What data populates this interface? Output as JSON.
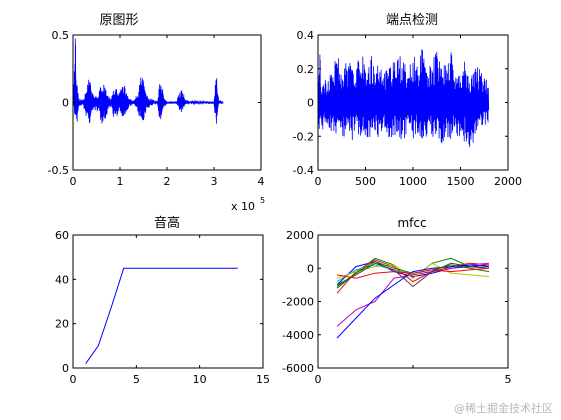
{
  "chart_data": [
    {
      "type": "line",
      "title": "原图形",
      "xlabel": "",
      "ylabel": "",
      "xlim": [
        0,
        4
      ],
      "ylim": [
        -0.5,
        0.5
      ],
      "xticks": [
        0,
        1,
        2,
        3,
        4
      ],
      "yticks": [
        -0.5,
        0,
        0.5
      ],
      "x_multiplier_label": "x 10",
      "x_multiplier_exp": "5",
      "series": [
        {
          "color": "#0000ff",
          "x": [
            0.0,
            0.05,
            0.08,
            0.1,
            0.12,
            0.2,
            0.3,
            0.34,
            0.38,
            0.45,
            0.55,
            0.62,
            0.7,
            0.75,
            0.8,
            0.9,
            1.0,
            1.05,
            1.1,
            1.15,
            1.2,
            1.3,
            1.4,
            1.45,
            1.5,
            1.55,
            1.6,
            1.7,
            1.8,
            1.85,
            1.9,
            1.95,
            2.0,
            2.1,
            2.2,
            2.3,
            2.4,
            2.5,
            2.6,
            2.8,
            2.9,
            3.0,
            3.05,
            3.1,
            3.2
          ],
          "y_upper": [
            0.02,
            0.5,
            0.15,
            0.1,
            0.03,
            0.02,
            0.1,
            0.22,
            0.12,
            0.05,
            0.1,
            0.18,
            0.1,
            0.05,
            0.03,
            0.15,
            0.08,
            0.18,
            0.12,
            0.06,
            0.03,
            0.02,
            0.1,
            0.22,
            0.16,
            0.08,
            0.04,
            0.02,
            0.01,
            0.18,
            0.1,
            0.03,
            0.01,
            0.01,
            0.01,
            0.12,
            0.02,
            0.01,
            0.02,
            0.01,
            0.01,
            0.01,
            0.22,
            0.02,
            0.01
          ],
          "y_lower": [
            -0.02,
            -0.12,
            -0.2,
            -0.1,
            -0.03,
            -0.02,
            -0.12,
            -0.18,
            -0.12,
            -0.05,
            -0.1,
            -0.18,
            -0.12,
            -0.05,
            -0.03,
            -0.15,
            -0.08,
            -0.12,
            -0.1,
            -0.06,
            -0.03,
            -0.02,
            -0.1,
            -0.12,
            -0.14,
            -0.08,
            -0.04,
            -0.02,
            -0.01,
            -0.16,
            -0.06,
            -0.03,
            -0.01,
            -0.01,
            -0.01,
            -0.08,
            -0.02,
            -0.01,
            -0.02,
            -0.01,
            -0.01,
            -0.01,
            -0.22,
            -0.02,
            -0.01
          ]
        }
      ]
    },
    {
      "type": "line",
      "title": "端点检测",
      "xlabel": "",
      "ylabel": "",
      "xlim": [
        0,
        2000
      ],
      "ylim": [
        -0.4,
        0.4
      ],
      "xticks": [
        0,
        500,
        1000,
        1500,
        2000
      ],
      "yticks": [
        -0.4,
        -0.2,
        0,
        0.2,
        0.4
      ],
      "series": [
        {
          "color": "#0000ff",
          "x": [
            0,
            20,
            40,
            60,
            100,
            150,
            200,
            250,
            300,
            350,
            400,
            450,
            500,
            550,
            600,
            650,
            700,
            750,
            800,
            850,
            900,
            950,
            1000,
            1050,
            1100,
            1150,
            1200,
            1250,
            1300,
            1350,
            1400,
            1450,
            1500,
            1550,
            1600,
            1650,
            1700,
            1750,
            1800
          ],
          "y_upper": [
            0.08,
            0.3,
            0.05,
            0.15,
            0.12,
            0.2,
            0.3,
            0.18,
            0.25,
            0.3,
            0.24,
            0.38,
            0.2,
            0.3,
            0.22,
            0.28,
            0.18,
            0.32,
            0.24,
            0.3,
            0.28,
            0.2,
            0.3,
            0.22,
            0.34,
            0.2,
            0.28,
            0.3,
            0.22,
            0.26,
            0.3,
            0.18,
            0.22,
            0.3,
            0.12,
            0.25,
            0.2,
            0.15,
            0.12
          ],
          "y_lower": [
            -0.28,
            -0.1,
            -0.22,
            -0.12,
            -0.15,
            -0.2,
            -0.18,
            -0.22,
            -0.2,
            -0.24,
            -0.2,
            -0.22,
            -0.2,
            -0.24,
            -0.18,
            -0.22,
            -0.2,
            -0.24,
            -0.22,
            -0.2,
            -0.24,
            -0.2,
            -0.22,
            -0.2,
            -0.22,
            -0.24,
            -0.2,
            -0.22,
            -0.26,
            -0.2,
            -0.22,
            -0.2,
            -0.22,
            -0.24,
            -0.32,
            -0.2,
            -0.18,
            -0.15,
            -0.12
          ]
        }
      ]
    },
    {
      "type": "line",
      "title": "音高",
      "xlabel": "",
      "ylabel": "",
      "xlim": [
        0,
        15
      ],
      "ylim": [
        0,
        60
      ],
      "xticks": [
        0,
        5,
        10,
        15
      ],
      "yticks": [
        0,
        20,
        40,
        60
      ],
      "series": [
        {
          "color": "#0000ff",
          "x": [
            1,
            2,
            3,
            4,
            5,
            6,
            7,
            8,
            9,
            10,
            11,
            12,
            13
          ],
          "y": [
            2,
            10,
            27,
            45,
            45,
            45,
            45,
            45,
            45,
            45,
            45,
            45,
            45
          ]
        }
      ]
    },
    {
      "type": "line",
      "title": "mfcc",
      "xlabel": "",
      "ylabel": "",
      "xlim": [
        0,
        5
      ],
      "ylim": [
        -6000,
        2000
      ],
      "xticks": [
        0,
        5
      ],
      "tick_labels_x_visible": [
        "0",
        "",
        "5"
      ],
      "yticks": [
        -6000,
        -4000,
        -2000,
        0,
        2000
      ],
      "series": [
        {
          "color": "#0000ff",
          "x": [
            0.5,
            1,
            1.5,
            2,
            2.5,
            3,
            3.5,
            4,
            4.5
          ],
          "y": [
            -1000,
            100,
            400,
            -200,
            -500,
            -300,
            0,
            100,
            200
          ]
        },
        {
          "color": "#008000",
          "x": [
            0.5,
            1,
            1.5,
            2,
            2.5,
            3,
            3.5,
            4,
            4.5
          ],
          "y": [
            -1200,
            -300,
            600,
            200,
            -600,
            300,
            600,
            100,
            0
          ]
        },
        {
          "color": "#ff0000",
          "x": [
            0.5,
            1,
            1.5,
            2,
            2.5,
            3,
            3.5,
            4,
            4.5
          ],
          "y": [
            -1500,
            -200,
            500,
            100,
            -800,
            -200,
            100,
            300,
            200
          ]
        },
        {
          "color": "#00bfbf",
          "x": [
            0.5,
            1,
            1.5,
            2,
            2.5,
            3,
            3.5,
            4,
            4.5
          ],
          "y": [
            -800,
            -100,
            200,
            -100,
            -400,
            -200,
            0,
            200,
            100
          ]
        },
        {
          "color": "#bf00bf",
          "x": [
            0.5,
            1,
            1.5,
            2,
            2.5,
            3,
            3.5,
            4,
            4.5
          ],
          "y": [
            -3500,
            -2500,
            -2000,
            -600,
            -400,
            -200,
            0,
            200,
            300
          ]
        },
        {
          "color": "#bfbf00",
          "x": [
            0.5,
            1,
            1.5,
            2,
            2.5,
            3,
            3.5,
            4,
            4.5
          ],
          "y": [
            -600,
            -200,
            100,
            200,
            -600,
            300,
            -300,
            -400,
            -500
          ]
        },
        {
          "color": "#404040",
          "x": [
            0.5,
            1,
            1.5,
            2,
            2.5,
            3,
            3.5,
            4,
            4.5
          ],
          "y": [
            -1000,
            -400,
            300,
            -100,
            -1100,
            -200,
            300,
            100,
            0
          ]
        },
        {
          "color": "#0000ff",
          "x": [
            0.5,
            1,
            1.5,
            2,
            2.5,
            3,
            3.5,
            4,
            4.5
          ],
          "y": [
            -4200,
            -3000,
            -1800,
            -1000,
            -200,
            0,
            100,
            200,
            100
          ]
        },
        {
          "color": "#008000",
          "x": [
            0.5,
            1,
            1.5,
            2,
            2.5,
            3,
            3.5,
            4,
            4.5
          ],
          "y": [
            -1100,
            -300,
            400,
            0,
            -300,
            -100,
            200,
            0,
            -200
          ]
        },
        {
          "color": "#ff0000",
          "x": [
            0.5,
            1,
            1.5,
            2,
            2.5,
            3,
            3.5,
            4,
            4.5
          ],
          "y": [
            -400,
            -600,
            -300,
            -200,
            -300,
            -100,
            -200,
            -100,
            0
          ]
        }
      ]
    }
  ],
  "watermark": "@稀土掘金技术社区"
}
